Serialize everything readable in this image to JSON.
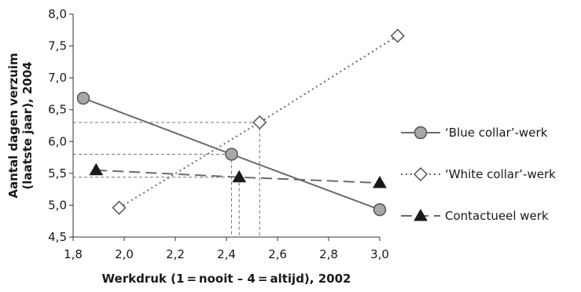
{
  "chart_data": {
    "type": "line",
    "xlabel": "Werkdruk (1 = nooit – 4 = altijd), 2002",
    "ylabel_line1": "Aantal dagen verzuim",
    "ylabel_line2": "(laatste jaar), 2004",
    "xlim": [
      1.8,
      3.0
    ],
    "ylim": [
      4.5,
      8.0
    ],
    "xticks": [
      "1,8",
      "2,0",
      "2,2",
      "2,4",
      "2,6",
      "2,8",
      "3,0"
    ],
    "yticks": [
      "4,5",
      "5,0",
      "5,5",
      "6,0",
      "6,5",
      "7,0",
      "7,5",
      "8,0"
    ],
    "grid": false,
    "legend_position": "right",
    "series": [
      {
        "name": "‘Blue collar’-werk",
        "marker": "circle",
        "line": "solid",
        "x": [
          1.84,
          2.42,
          3.0
        ],
        "y": [
          6.68,
          5.8,
          4.93
        ]
      },
      {
        "name": "‘White collar’-werk",
        "marker": "diamond",
        "line": "dotted",
        "x": [
          1.98,
          2.53,
          3.07
        ],
        "y": [
          4.96,
          6.3,
          7.66
        ]
      },
      {
        "name": "Contactueel werk",
        "marker": "triangle",
        "line": "dashed",
        "x": [
          1.89,
          2.45,
          3.0
        ],
        "y": [
          5.55,
          5.44,
          5.35
        ]
      }
    ],
    "reference_lines": [
      {
        "x": 2.53,
        "y": 6.3
      },
      {
        "x": 2.42,
        "y": 5.8
      },
      {
        "x": 2.45,
        "y": 5.44
      }
    ]
  },
  "colors": {
    "line": "#6b6b6b",
    "marker_fill": "#a8a8a8",
    "marker_stroke": "#555555",
    "triangle": "#1a1a1a",
    "axis": "#333333"
  }
}
